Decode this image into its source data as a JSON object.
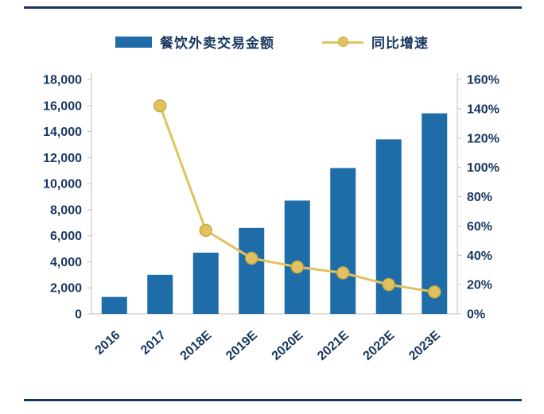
{
  "figure": {
    "rule_color": "#17375E",
    "background": "#FFFFFF"
  },
  "legend": {
    "bar_label": "餐饮外卖交易金额",
    "line_label": "同比增速"
  },
  "colors": {
    "bar": "#1E6CA8",
    "line": "#E2C25E",
    "marker_fill": "#E2C25E",
    "marker_stroke": "#C9A943",
    "axis_text": "#17375E",
    "axis_line": "#BFBFBF"
  },
  "chart_data": {
    "type": "bar+line",
    "categories": [
      "2016",
      "2017",
      "2018E",
      "2019E",
      "2020E",
      "2021E",
      "2022E",
      "2023E"
    ],
    "series": [
      {
        "name": "餐饮外卖交易金额",
        "type": "bar",
        "axis": "left",
        "values": [
          1300,
          3000,
          4700,
          6600,
          8700,
          11200,
          13400,
          15400
        ]
      },
      {
        "name": "同比增速",
        "type": "line",
        "axis": "right",
        "unit": "%",
        "values": [
          null,
          142,
          57,
          38,
          32,
          28,
          20,
          15
        ]
      }
    ],
    "left_axis": {
      "min": 0,
      "max": 18000,
      "step": 2000,
      "tick_format": "thousands"
    },
    "right_axis": {
      "min": 0,
      "max": 160,
      "step": 20,
      "tick_format": "percent"
    },
    "grid": false,
    "legend_position": "top"
  }
}
